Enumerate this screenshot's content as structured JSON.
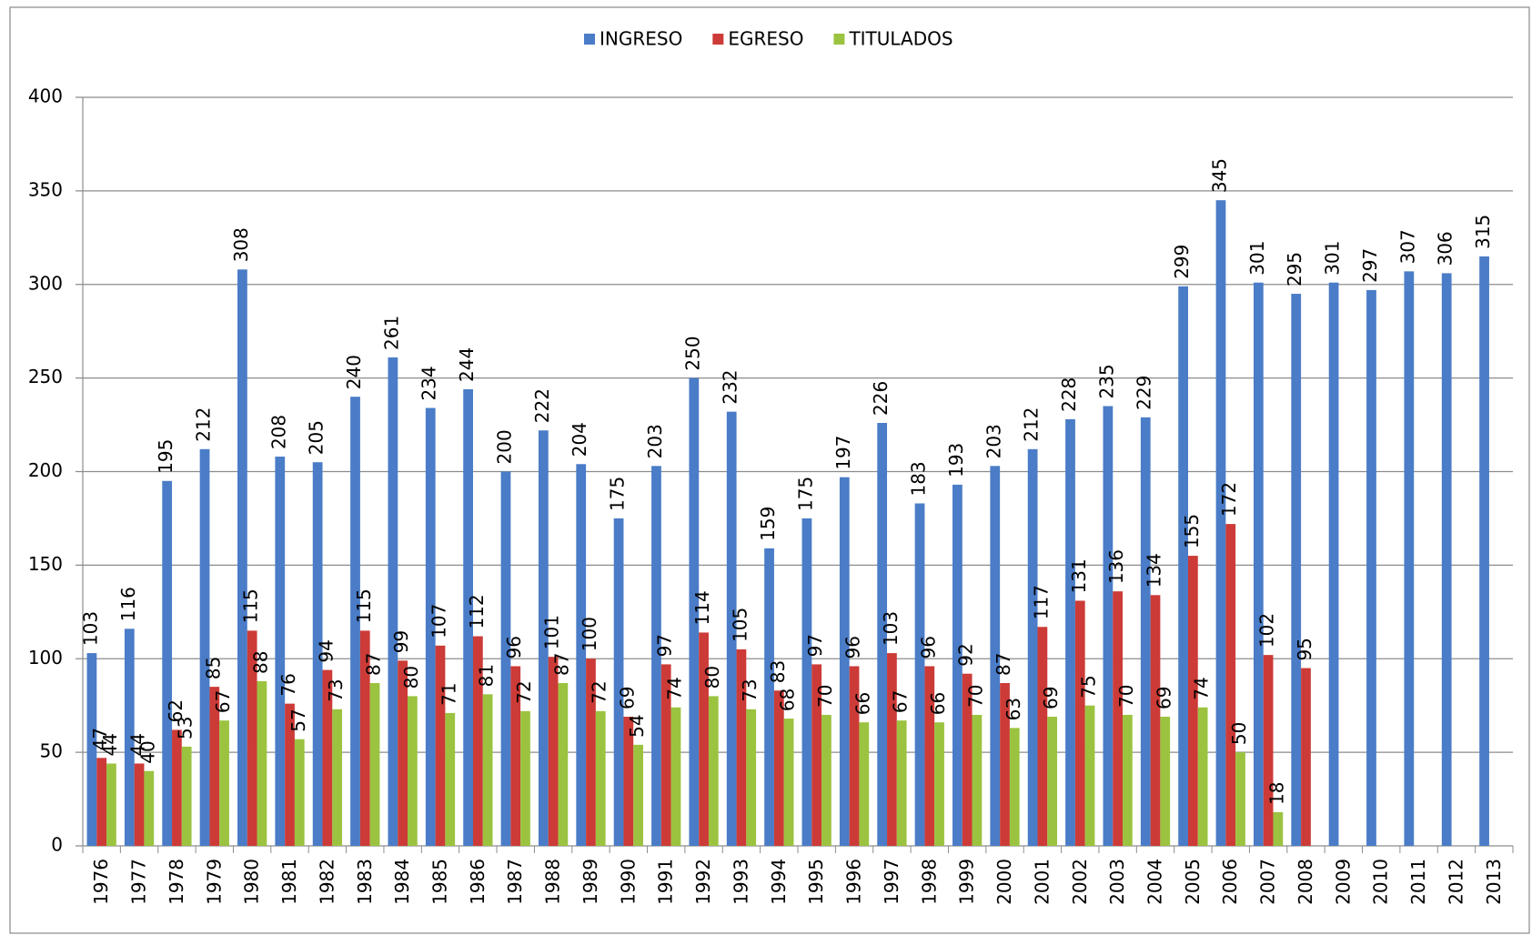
{
  "chart_data": {
    "type": "bar",
    "categories": [
      "1976",
      "1977",
      "1978",
      "1979",
      "1980",
      "1981",
      "1982",
      "1983",
      "1984",
      "1985",
      "1986",
      "1987",
      "1988",
      "1989",
      "1990",
      "1991",
      "1992",
      "1993",
      "1994",
      "1995",
      "1996",
      "1997",
      "1998",
      "1999",
      "2000",
      "2001",
      "2002",
      "2003",
      "2004",
      "2005",
      "2006",
      "2007",
      "2008",
      "2009",
      "2010",
      "2011",
      "2012",
      "2013"
    ],
    "series": [
      {
        "name": "INGRESO",
        "color": "#4a7cc7",
        "values": [
          103,
          116,
          195,
          212,
          308,
          208,
          205,
          240,
          261,
          234,
          244,
          200,
          222,
          204,
          175,
          203,
          250,
          232,
          159,
          175,
          197,
          226,
          183,
          193,
          203,
          212,
          228,
          235,
          229,
          299,
          345,
          301,
          295,
          301,
          297,
          307,
          306,
          315
        ]
      },
      {
        "name": "EGRESO",
        "color": "#cc3b37",
        "values": [
          47,
          44,
          62,
          85,
          115,
          76,
          94,
          115,
          99,
          107,
          112,
          96,
          101,
          100,
          69,
          97,
          114,
          105,
          83,
          97,
          96,
          103,
          96,
          92,
          87,
          117,
          131,
          136,
          134,
          155,
          172,
          102,
          95,
          null,
          null,
          null,
          null,
          null
        ]
      },
      {
        "name": "TITULADOS",
        "color": "#9bc340",
        "values": [
          44,
          40,
          53,
          67,
          88,
          57,
          73,
          87,
          80,
          71,
          81,
          72,
          87,
          72,
          54,
          74,
          80,
          73,
          68,
          70,
          66,
          67,
          66,
          70,
          63,
          69,
          75,
          70,
          69,
          74,
          50,
          18,
          null,
          null,
          null,
          null,
          null,
          null
        ]
      }
    ],
    "ylim": [
      0,
      400
    ],
    "yticks": [
      0,
      50,
      100,
      150,
      200,
      250,
      300,
      350,
      400
    ],
    "grid": true,
    "legend": "top"
  }
}
